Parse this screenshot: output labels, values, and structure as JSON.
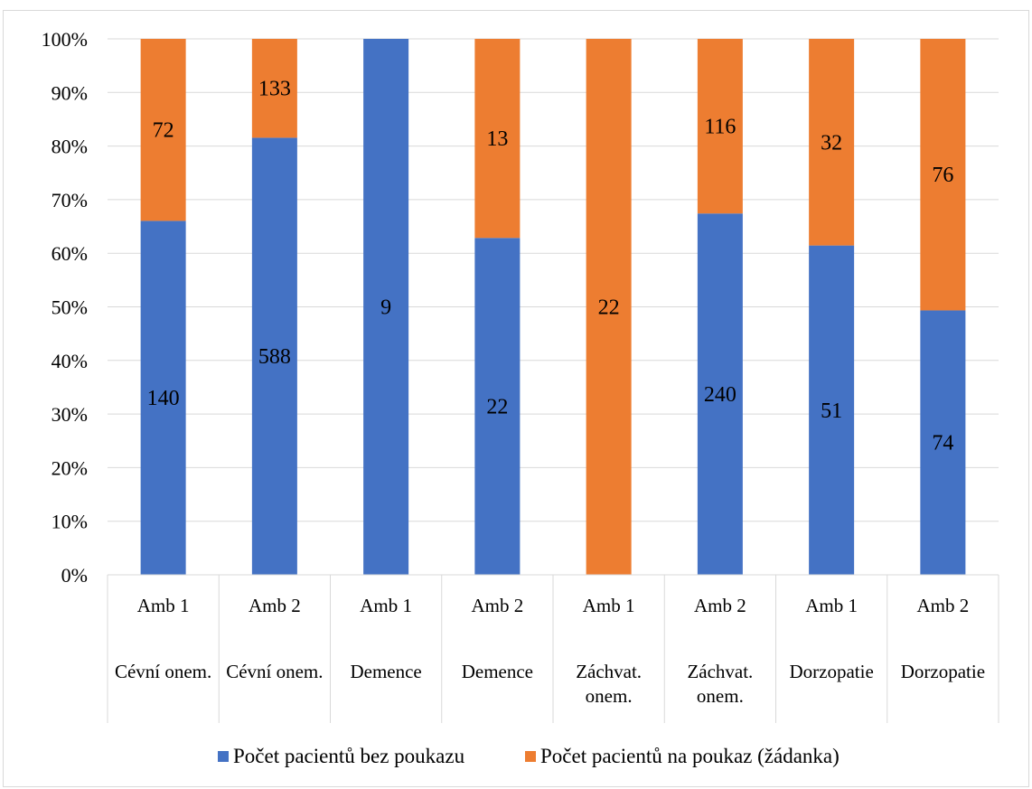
{
  "chart_data": {
    "type": "bar",
    "stacked": "percent",
    "categories": [
      {
        "level1": "Amb 1",
        "level2": [
          "Cévní onem."
        ]
      },
      {
        "level1": "Amb 2",
        "level2": [
          "Cévní onem."
        ]
      },
      {
        "level1": "Amb 1",
        "level2": [
          "Demence"
        ]
      },
      {
        "level1": "Amb 2",
        "level2": [
          "Demence"
        ]
      },
      {
        "level1": "Amb 1",
        "level2": [
          "Záchvat.",
          "onem."
        ]
      },
      {
        "level1": "Amb 2",
        "level2": [
          "Záchvat.",
          "onem."
        ]
      },
      {
        "level1": "Amb 1",
        "level2": [
          "Dorzopatie"
        ]
      },
      {
        "level1": "Amb 2",
        "level2": [
          "Dorzopatie"
        ]
      }
    ],
    "series": [
      {
        "name": "Počet pacientů bez poukazu",
        "color": "#4472c4",
        "values": [
          140,
          588,
          9,
          22,
          0,
          240,
          51,
          74
        ]
      },
      {
        "name": "Počet pacientů na poukaz (žádanka)",
        "color": "#ed7d31",
        "values": [
          72,
          133,
          0,
          13,
          22,
          116,
          32,
          76
        ]
      }
    ],
    "yticks": [
      "0%",
      "10%",
      "20%",
      "30%",
      "40%",
      "50%",
      "60%",
      "70%",
      "80%",
      "90%",
      "100%"
    ],
    "ylim": [
      0,
      100
    ],
    "grid": true,
    "legend": "bottom"
  }
}
